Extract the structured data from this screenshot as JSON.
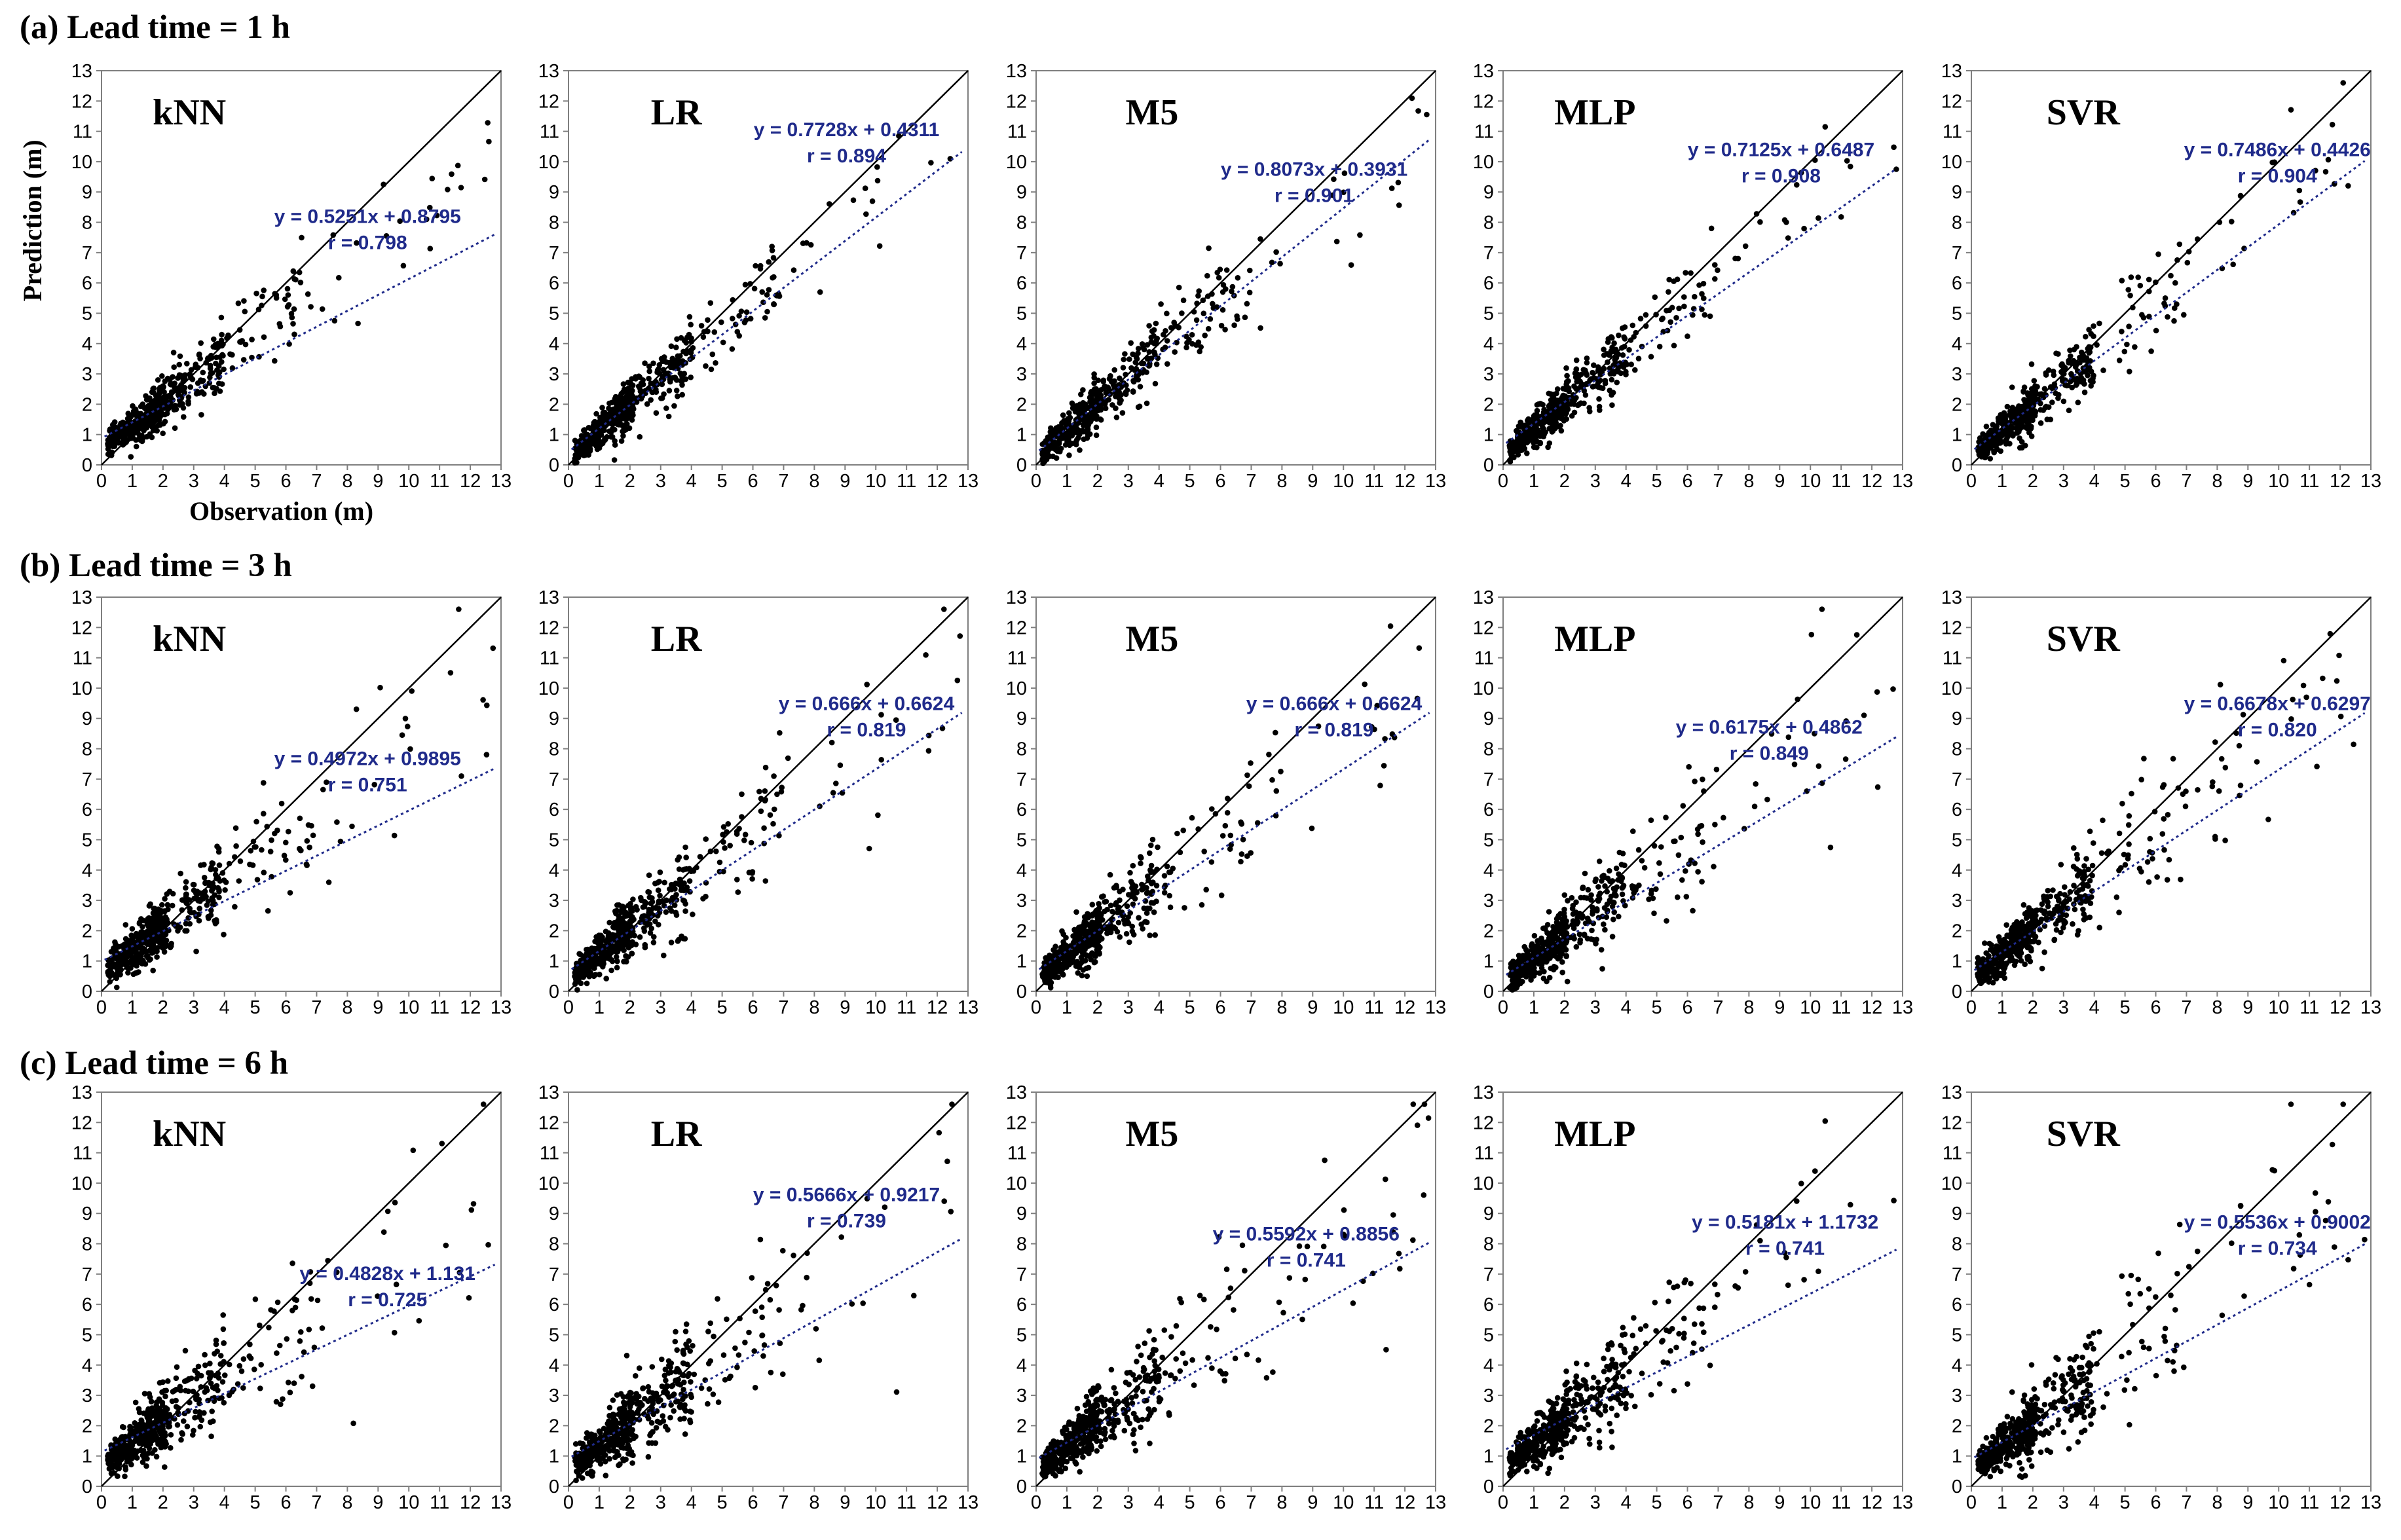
{
  "rows": [
    {
      "label": "(a) Lead time = 1 h"
    },
    {
      "label": "(b) Lead time = 3 h"
    },
    {
      "label": "(c) Lead time = 6 h"
    }
  ],
  "chart_data": [
    {
      "type": "scatter",
      "title": "kNN",
      "lead_time_h": 1,
      "equation": "y = 0.5251x + 0.8795",
      "r_label": "r = 0.798",
      "slope": 0.5251,
      "intercept": 0.8795,
      "xlabel": "Observation (m)",
      "ylabel": "Prediction (m)",
      "xlim": [
        0,
        13
      ],
      "ylim": [
        0,
        13
      ],
      "ticks": [
        "0",
        "1",
        "2",
        "3",
        "4",
        "5",
        "6",
        "7",
        "8",
        "9",
        "10",
        "11",
        "12",
        "13"
      ]
    },
    {
      "type": "scatter",
      "title": "LR",
      "lead_time_h": 1,
      "equation": "y = 0.7728x + 0.4311",
      "r_label": "r = 0.894",
      "slope": 0.7728,
      "intercept": 0.4311,
      "xlim": [
        0,
        13
      ],
      "ylim": [
        0,
        13
      ],
      "ticks": [
        "0",
        "1",
        "2",
        "3",
        "4",
        "5",
        "6",
        "7",
        "8",
        "9",
        "10",
        "11",
        "12",
        "13"
      ]
    },
    {
      "type": "scatter",
      "title": "M5",
      "lead_time_h": 1,
      "equation": "y = 0.8073x + 0.3931",
      "r_label": "r = 0.901",
      "slope": 0.8073,
      "intercept": 0.3931,
      "xlim": [
        0,
        13
      ],
      "ylim": [
        0,
        13
      ],
      "ticks": [
        "0",
        "1",
        "2",
        "3",
        "4",
        "5",
        "6",
        "7",
        "8",
        "9",
        "10",
        "11",
        "12",
        "13"
      ]
    },
    {
      "type": "scatter",
      "title": "MLP",
      "lead_time_h": 1,
      "equation": "y = 0.7125x + 0.6487",
      "r_label": "r = 0.908",
      "slope": 0.7125,
      "intercept": 0.6487,
      "xlim": [
        0,
        13
      ],
      "ylim": [
        0,
        13
      ],
      "ticks": [
        "0",
        "1",
        "2",
        "3",
        "4",
        "5",
        "6",
        "7",
        "8",
        "9",
        "10",
        "11",
        "12",
        "13"
      ]
    },
    {
      "type": "scatter",
      "title": "SVR",
      "lead_time_h": 1,
      "equation": "y = 0.7486x + 0.4426",
      "r_label": "r = 0.904",
      "slope": 0.7486,
      "intercept": 0.4426,
      "xlim": [
        0,
        13
      ],
      "ylim": [
        0,
        13
      ],
      "ticks": [
        "0",
        "1",
        "2",
        "3",
        "4",
        "5",
        "6",
        "7",
        "8",
        "9",
        "10",
        "11",
        "12",
        "13"
      ]
    },
    {
      "type": "scatter",
      "title": "kNN",
      "lead_time_h": 3,
      "equation": "y = 0.4972x + 0.9895",
      "r_label": "r = 0.751",
      "slope": 0.4972,
      "intercept": 0.9895,
      "xlim": [
        0,
        13
      ],
      "ylim": [
        0,
        13
      ],
      "ticks": [
        "0",
        "1",
        "2",
        "3",
        "4",
        "5",
        "6",
        "7",
        "8",
        "9",
        "10",
        "11",
        "12",
        "13"
      ]
    },
    {
      "type": "scatter",
      "title": "LR",
      "lead_time_h": 3,
      "equation": "y = 0.666x + 0.6624",
      "r_label": "r = 0.819",
      "slope": 0.666,
      "intercept": 0.6624,
      "xlim": [
        0,
        13
      ],
      "ylim": [
        0,
        13
      ],
      "ticks": [
        "0",
        "1",
        "2",
        "3",
        "4",
        "5",
        "6",
        "7",
        "8",
        "9",
        "10",
        "11",
        "12",
        "13"
      ]
    },
    {
      "type": "scatter",
      "title": "M5",
      "lead_time_h": 3,
      "equation": "y = 0.666x + 0.6624",
      "r_label": "r = 0.819",
      "slope": 0.666,
      "intercept": 0.6624,
      "xlim": [
        0,
        13
      ],
      "ylim": [
        0,
        13
      ],
      "ticks": [
        "0",
        "1",
        "2",
        "3",
        "4",
        "5",
        "6",
        "7",
        "8",
        "9",
        "10",
        "11",
        "12",
        "13"
      ]
    },
    {
      "type": "scatter",
      "title": "MLP",
      "lead_time_h": 3,
      "equation": "y = 0.6175x + 0.4862",
      "r_label": "r = 0.849",
      "slope": 0.6175,
      "intercept": 0.4862,
      "xlim": [
        0,
        13
      ],
      "ylim": [
        0,
        13
      ],
      "ticks": [
        "0",
        "1",
        "2",
        "3",
        "4",
        "5",
        "6",
        "7",
        "8",
        "9",
        "10",
        "11",
        "12",
        "13"
      ]
    },
    {
      "type": "scatter",
      "title": "SVR",
      "lead_time_h": 3,
      "equation": "y = 0.6678x + 0.6297",
      "r_label": "r = 0.820",
      "slope": 0.6678,
      "intercept": 0.6297,
      "xlim": [
        0,
        13
      ],
      "ylim": [
        0,
        13
      ],
      "ticks": [
        "0",
        "1",
        "2",
        "3",
        "4",
        "5",
        "6",
        "7",
        "8",
        "9",
        "10",
        "11",
        "12",
        "13"
      ]
    },
    {
      "type": "scatter",
      "title": "kNN",
      "lead_time_h": 6,
      "equation": "y = 0.4828x + 1.131",
      "r_label": "r = 0.725",
      "slope": 0.4828,
      "intercept": 1.131,
      "xlim": [
        0,
        13
      ],
      "ylim": [
        0,
        13
      ],
      "ticks": [
        "0",
        "1",
        "2",
        "3",
        "4",
        "5",
        "6",
        "7",
        "8",
        "9",
        "10",
        "11",
        "12",
        "13"
      ]
    },
    {
      "type": "scatter",
      "title": "LR",
      "lead_time_h": 6,
      "equation": "y = 0.5666x + 0.9217",
      "r_label": "r = 0.739",
      "slope": 0.5666,
      "intercept": 0.9217,
      "xlim": [
        0,
        13
      ],
      "ylim": [
        0,
        13
      ],
      "ticks": [
        "0",
        "1",
        "2",
        "3",
        "4",
        "5",
        "6",
        "7",
        "8",
        "9",
        "10",
        "11",
        "12",
        "13"
      ]
    },
    {
      "type": "scatter",
      "title": "M5",
      "lead_time_h": 6,
      "equation": "y = 0.5592x + 0.8856",
      "r_label": "r = 0.741",
      "slope": 0.5592,
      "intercept": 0.8856,
      "xlim": [
        0,
        13
      ],
      "ylim": [
        0,
        13
      ],
      "ticks": [
        "0",
        "1",
        "2",
        "3",
        "4",
        "5",
        "6",
        "7",
        "8",
        "9",
        "10",
        "11",
        "12",
        "13"
      ]
    },
    {
      "type": "scatter",
      "title": "MLP",
      "lead_time_h": 6,
      "equation": "y = 0.5181x + 1.1732",
      "r_label": "r = 0.741",
      "slope": 0.5181,
      "intercept": 1.1732,
      "xlim": [
        0,
        13
      ],
      "ylim": [
        0,
        13
      ],
      "ticks": [
        "0",
        "1",
        "2",
        "3",
        "4",
        "5",
        "6",
        "7",
        "8",
        "9",
        "10",
        "11",
        "12",
        "13"
      ]
    },
    {
      "type": "scatter",
      "title": "SVR",
      "lead_time_h": 6,
      "equation": "y = 0.5536x + 0.9002",
      "r_label": "r = 0.734",
      "slope": 0.5536,
      "intercept": 0.9002,
      "xlim": [
        0,
        13
      ],
      "ylim": [
        0,
        13
      ],
      "ticks": [
        "0",
        "1",
        "2",
        "3",
        "4",
        "5",
        "6",
        "7",
        "8",
        "9",
        "10",
        "11",
        "12",
        "13"
      ]
    }
  ]
}
